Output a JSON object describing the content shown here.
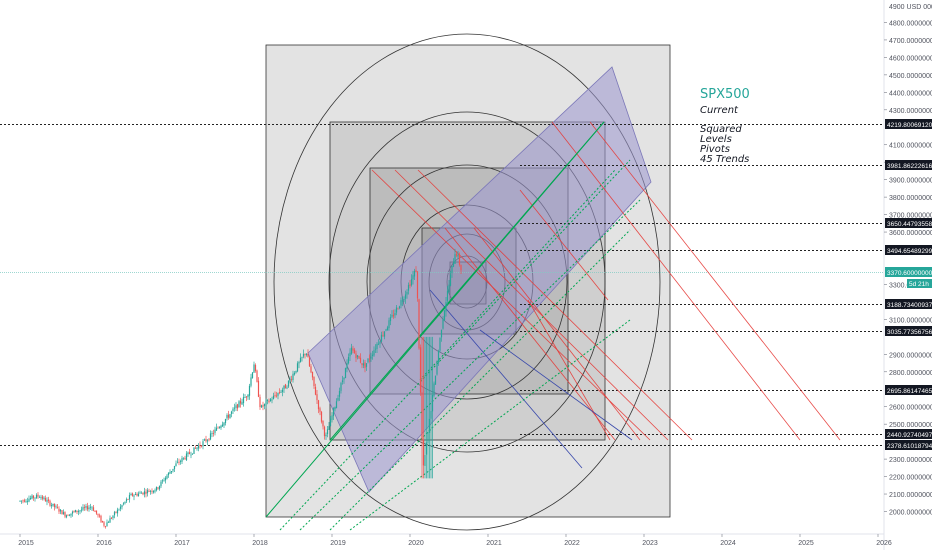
{
  "chart_data": {
    "type": "candlestick",
    "symbol": "SPX500",
    "currency": "USD",
    "x_axis": {
      "ticks": [
        "2015",
        "2016",
        "2017",
        "2018",
        "2019",
        "2020",
        "2021",
        "2022",
        "2023",
        "2024",
        "2025",
        "2026"
      ]
    },
    "y_axis": {
      "range": [
        1950,
        4900
      ],
      "top_label": "4900 USD 0000",
      "ticks": [
        {
          "v": 4800,
          "label": "4800.00000000"
        },
        {
          "v": 4700,
          "label": "4700.00000000"
        },
        {
          "v": 4600,
          "label": "4600.00000000"
        },
        {
          "v": 4500,
          "label": "4500.00000000"
        },
        {
          "v": 4400,
          "label": "4400.00000000"
        },
        {
          "v": 4300,
          "label": "4300.00000000"
        },
        {
          "v": 4100,
          "label": "4100.00000000"
        },
        {
          "v": 4000,
          "label": "4000.00000000"
        },
        {
          "v": 3900,
          "label": "3900.00000000"
        },
        {
          "v": 3800,
          "label": "3800.00000000"
        },
        {
          "v": 3700,
          "label": "3700.00000000"
        },
        {
          "v": 3600,
          "label": "3600.00000000"
        },
        {
          "v": 3300,
          "label": "3300.00000000"
        },
        {
          "v": 3100,
          "label": "3100.00000000"
        },
        {
          "v": 2900,
          "label": "2900.00000000"
        },
        {
          "v": 2800,
          "label": "2800.00000000"
        },
        {
          "v": 2600,
          "label": "2600.00000000"
        },
        {
          "v": 2500,
          "label": "2500.00000000"
        },
        {
          "v": 2300,
          "label": "2300.00000000"
        },
        {
          "v": 2200,
          "label": "2200.00000000"
        },
        {
          "v": 2100,
          "label": "2100.00000000"
        },
        {
          "v": 2000,
          "label": "2000.00000000"
        }
      ]
    },
    "levels": [
      {
        "value": 4219.8006912,
        "label": "4219.80069120"
      },
      {
        "value": 3981.86222616,
        "label": "3981.86222616"
      },
      {
        "value": 3650.44793558,
        "label": "3650.44793558"
      },
      {
        "value": 3494.65489299,
        "label": "3494.65489299"
      },
      {
        "value": 3188.73400937,
        "label": "3188.73400937"
      },
      {
        "value": 3035.77356756,
        "label": "3035.77356756"
      },
      {
        "value": 2695.86147465,
        "label": "2695.86147465"
      },
      {
        "value": 2440.92740497,
        "label": "2440.92740497"
      },
      {
        "value": 2378.61018794,
        "label": "2378.61018794"
      }
    ],
    "current_price": {
      "value": 3370.6,
      "label": "3370.60000000",
      "countdown": "5d 21h"
    },
    "series": [
      {
        "date": "2015-01",
        "close": 2060
      },
      {
        "date": "2015-04",
        "close": 2090
      },
      {
        "date": "2015-08",
        "close": 1980
      },
      {
        "date": "2015-12",
        "close": 2030
      },
      {
        "date": "2016-02",
        "close": 1920
      },
      {
        "date": "2016-06",
        "close": 2090
      },
      {
        "date": "2016-10",
        "close": 2130
      },
      {
        "date": "2017-01",
        "close": 2270
      },
      {
        "date": "2017-06",
        "close": 2420
      },
      {
        "date": "2017-12",
        "close": 2670
      },
      {
        "date": "2018-01",
        "close": 2850
      },
      {
        "date": "2018-02",
        "close": 2590
      },
      {
        "date": "2018-06",
        "close": 2720
      },
      {
        "date": "2018-09",
        "close": 2920
      },
      {
        "date": "2018-12",
        "close": 2420
      },
      {
        "date": "2019-04",
        "close": 2930
      },
      {
        "date": "2019-06",
        "close": 2830
      },
      {
        "date": "2019-12",
        "close": 3230
      },
      {
        "date": "2020-02",
        "close": 3390
      },
      {
        "date": "2020-03",
        "close": 2230
      },
      {
        "date": "2020-06",
        "close": 3100
      },
      {
        "date": "2020-08",
        "close": 3500
      },
      {
        "date": "2020-09",
        "close": 3370
      }
    ],
    "annotations": {
      "title": "SPX500",
      "lines": [
        "Current",
        "Squared",
        "Levels",
        "Pivots",
        "45 Trends"
      ]
    }
  },
  "colors": {
    "up": "#26a69a",
    "down": "#ef5350",
    "accent": "#26a69a",
    "channel": "#9c98d0",
    "green_trend": "#00a651",
    "red_trend": "#e53935"
  }
}
